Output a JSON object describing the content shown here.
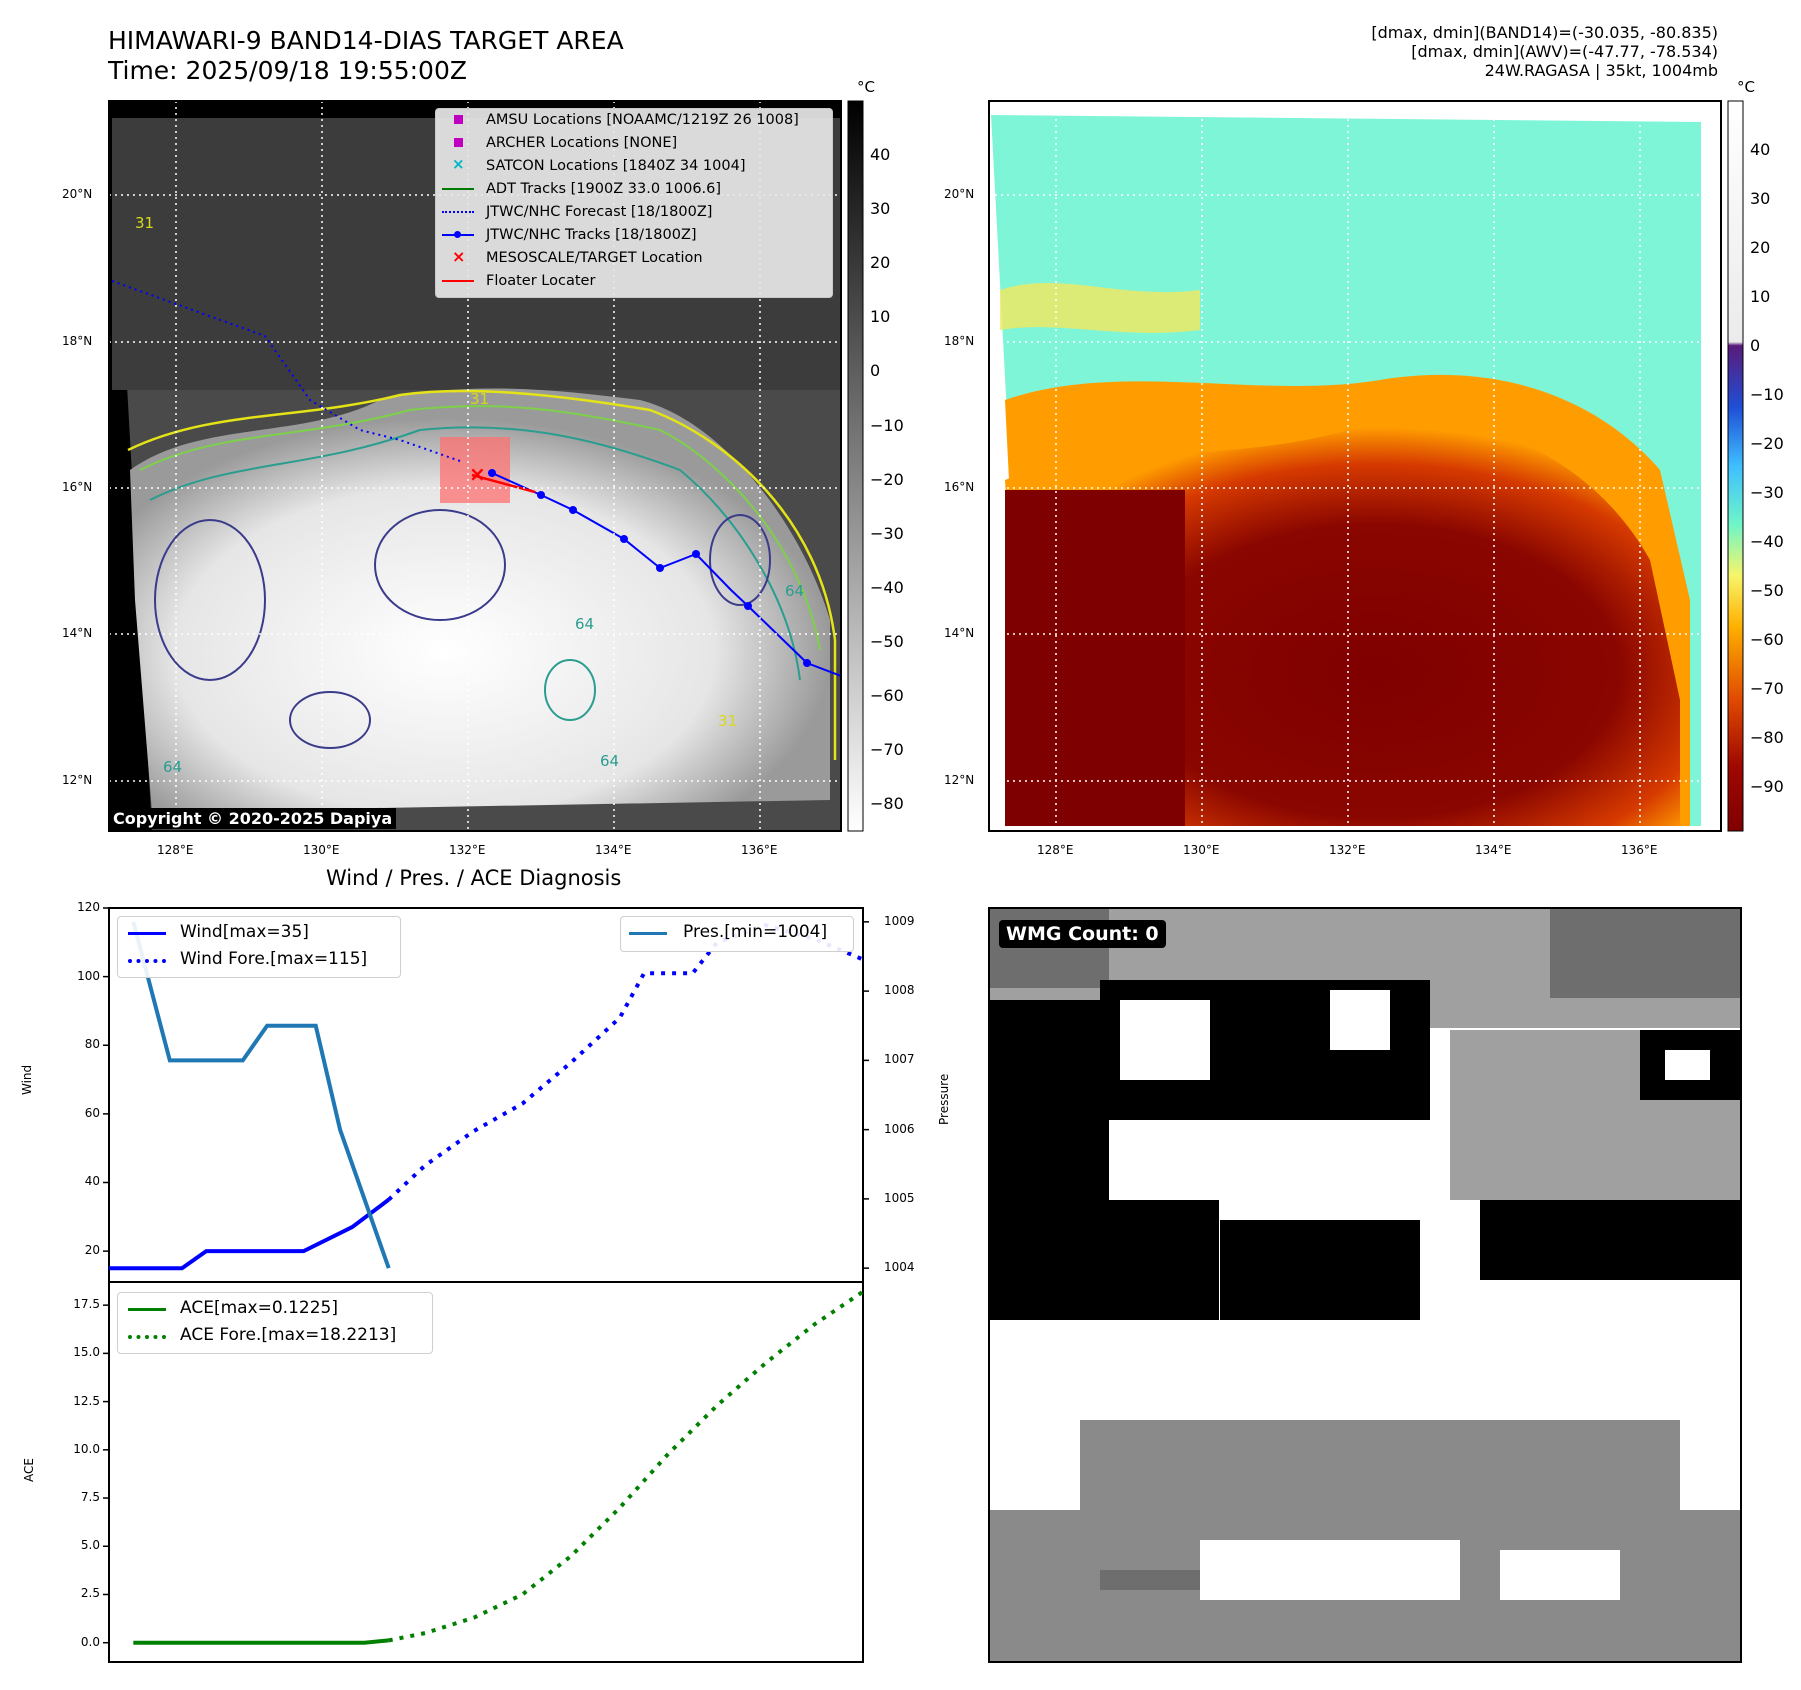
{
  "header": {
    "title_line1": "HIMAWARI-9 BAND14-DIAS TARGET AREA",
    "title_line2": "Time: 2025/09/18 19:55:00Z",
    "info_line1": "[dmax, dmin](BAND14)=(-30.035, -80.835)",
    "info_line2": "[dmax, dmin](AWV)=(-47.77, -78.534)",
    "info_line3": "24W.RAGASA | 35kt, 1004mb"
  },
  "map_axes": {
    "lat_ticks": [
      "20°N",
      "18°N",
      "16°N",
      "14°N",
      "12°N"
    ],
    "lon_ticks": [
      "128°E",
      "130°E",
      "132°E",
      "134°E",
      "136°E"
    ],
    "colors": {
      "band14_warm": "#2a2a2a",
      "band14_cold": "#ffffff",
      "awv_cold": "#7f0000",
      "awv_warm": "#7ff5d7"
    }
  },
  "colorbar_left": {
    "unit": "°C",
    "ticks": [
      "40",
      "30",
      "20",
      "10",
      "0",
      "−10",
      "−20",
      "−30",
      "−40",
      "−50",
      "−60",
      "−70",
      "−80"
    ]
  },
  "colorbar_right": {
    "unit": "°C",
    "ticks": [
      "40",
      "30",
      "20",
      "10",
      "0",
      "−10",
      "−20",
      "−30",
      "−40",
      "−50",
      "−60",
      "−70",
      "−80",
      "−90"
    ]
  },
  "legend_map": {
    "items": [
      {
        "label": "AMSU Locations [NOAAMC/1219Z 26 1008]",
        "color": "#c000c0"
      },
      {
        "label": "ARCHER Locations [NONE]",
        "color": "#c000c0"
      },
      {
        "label": "SATCON Locations [1840Z 34 1004]",
        "color": "#00b7c7"
      },
      {
        "label": "ADT Tracks [1900Z 33.0 1006.6]",
        "color": "#007a00"
      },
      {
        "label": "JTWC/NHC Forecast [18/1800Z]",
        "color": "#0000ff"
      },
      {
        "label": "JTWC/NHC Tracks [18/1800Z]",
        "color": "#0000ff"
      },
      {
        "label": "MESOSCALE/TARGET Location",
        "color": "#ff0000"
      },
      {
        "label": "Floater Locater",
        "color": "#ff0000"
      }
    ]
  },
  "contour_labels": [
    "31",
    "31",
    "31",
    "64",
    "64",
    "64",
    "64"
  ],
  "copyright": "Copyright © 2020-2025 Dapiya",
  "diagnosis": {
    "title": "Wind / Pres. / ACE Diagnosis",
    "wind_ylabel": "Wind",
    "pressure_ylabel": "Pressure",
    "ace_ylabel": "ACE",
    "wind_ticks": [
      "120",
      "100",
      "80",
      "60",
      "40",
      "20"
    ],
    "pressure_ticks": [
      "1009",
      "1008",
      "1007",
      "1006",
      "1005",
      "1004"
    ],
    "ace_ticks": [
      "17.5",
      "15.0",
      "12.5",
      "10.0",
      "7.5",
      "5.0",
      "2.5",
      "0.0"
    ],
    "legend_wind": "Wind[max=35]",
    "legend_wind_fore": "Wind Fore.[max=115]",
    "legend_pres": "Pres.[min=1004]",
    "legend_ace": "ACE[max=0.1225]",
    "legend_ace_fore": "ACE Fore.[max=18.2213]"
  },
  "wmg": {
    "label": "WMG Count: 0"
  },
  "chart_data": [
    {
      "type": "line",
      "title": "Wind / Pres. / ACE Diagnosis",
      "ylabel": "Wind",
      "ylim": [
        11,
        120
      ],
      "y2label": "Pressure",
      "y2lim": [
        1003.8,
        1009.2
      ],
      "xlim": [
        0,
        31
      ],
      "series": [
        {
          "name": "Wind[max=35]",
          "color": "#0000ff",
          "style": "solid",
          "x": [
            0,
            3,
            4,
            8,
            10,
            11.5
          ],
          "values": [
            15,
            15,
            20,
            20,
            27,
            35
          ]
        },
        {
          "name": "Wind Fore.[max=115]",
          "color": "#0000ff",
          "style": "dotted",
          "x": [
            11.5,
            13,
            15,
            17,
            19,
            21,
            22,
            24,
            25,
            27,
            29,
            31
          ],
          "values": [
            35,
            45,
            55,
            63,
            75,
            88,
            101,
            101,
            110,
            115,
            111,
            105
          ]
        },
        {
          "name": "Pres.[min=1004]",
          "color": "#1f77b4",
          "style": "solid",
          "axis": "y2",
          "x": [
            1,
            2.5,
            5.5,
            6.5,
            8.5,
            9.5,
            11.5
          ],
          "values": [
            1009,
            1007,
            1007,
            1007.5,
            1007.5,
            1006,
            1004
          ]
        }
      ]
    },
    {
      "type": "line",
      "ylabel": "ACE",
      "ylim": [
        -1,
        18.7
      ],
      "xlim": [
        0,
        31
      ],
      "series": [
        {
          "name": "ACE[max=0.1225]",
          "color": "#008000",
          "style": "solid",
          "x": [
            1,
            10.5,
            11.5
          ],
          "values": [
            0,
            0,
            0.1225
          ]
        },
        {
          "name": "ACE Fore.[max=18.2213]",
          "color": "#008000",
          "style": "dotted",
          "x": [
            11.5,
            13,
            15,
            17,
            19,
            21,
            23,
            25,
            27,
            29,
            31
          ],
          "values": [
            0.12,
            0.5,
            1.3,
            2.5,
            4.5,
            7,
            9.8,
            12.3,
            14.5,
            16.5,
            18.2
          ]
        }
      ]
    }
  ]
}
